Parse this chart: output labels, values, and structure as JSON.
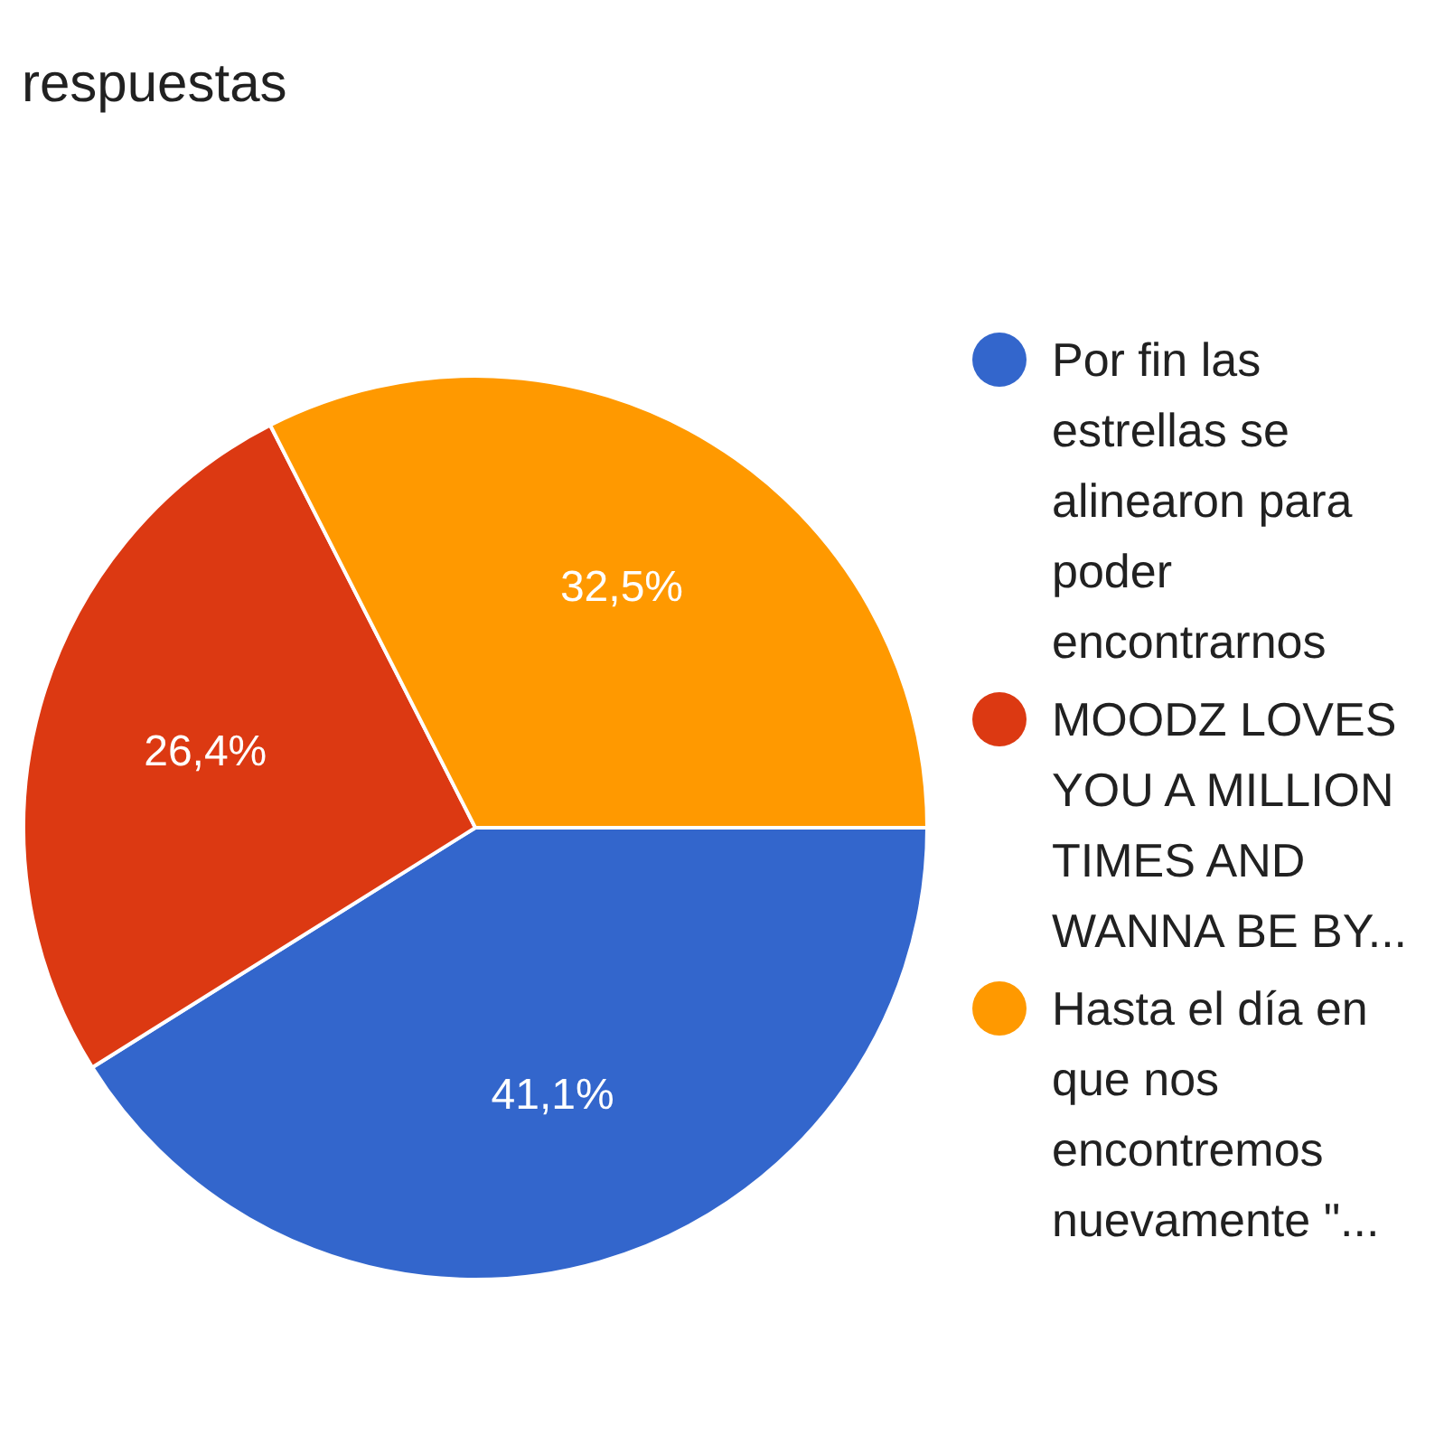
{
  "chart_data": {
    "type": "pie",
    "title": "respuestas",
    "categories": [
      "Por fin las estrellas se alinearon para poder encontrarnos",
      "MOODZ LOVES YOU A MILLION TIMES AND WANNA BE BY...",
      "Hasta el día en que nos encontremos nuevamente \"..."
    ],
    "values": [
      41.1,
      26.4,
      32.5
    ],
    "value_labels": [
      "41,1%",
      "26,4%",
      "32,5%"
    ],
    "colors": [
      "#3366cc",
      "#dc3912",
      "#ff9900"
    ],
    "legend": "right"
  }
}
